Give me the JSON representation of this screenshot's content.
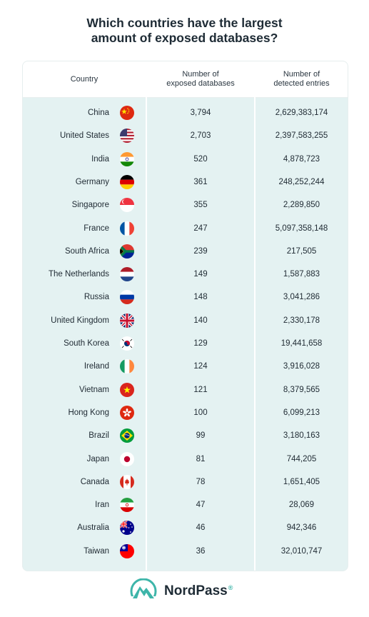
{
  "title_line1": "Which countries have the largest",
  "title_line2": "amount of exposed databases?",
  "headers": {
    "country": "Country",
    "db_line1": "Number of",
    "db_line2": "exposed databases",
    "entries_line1": "Number of",
    "entries_line2": "detected entries"
  },
  "chart_data": {
    "type": "table",
    "title": "Which countries have the largest amount of exposed databases?",
    "columns": [
      "Country",
      "Number of exposed databases",
      "Number of detected entries"
    ],
    "rows": [
      {
        "country": "China",
        "flag": "china-flag",
        "databases": "3,794",
        "entries": "2,629,383,174"
      },
      {
        "country": "United States",
        "flag": "usa-flag",
        "databases": "2,703",
        "entries": "2,397,583,255"
      },
      {
        "country": "India",
        "flag": "india-flag",
        "databases": "520",
        "entries": "4,878,723"
      },
      {
        "country": "Germany",
        "flag": "germany-flag",
        "databases": "361",
        "entries": "248,252,244"
      },
      {
        "country": "Singapore",
        "flag": "singapore-flag",
        "databases": "355",
        "entries": "2,289,850"
      },
      {
        "country": "France",
        "flag": "france-flag",
        "databases": "247",
        "entries": "5,097,358,148"
      },
      {
        "country": "South Africa",
        "flag": "south-africa-flag",
        "databases": "239",
        "entries": "217,505"
      },
      {
        "country": "The Netherlands",
        "flag": "netherlands-flag",
        "databases": "149",
        "entries": "1,587,883"
      },
      {
        "country": "Russia",
        "flag": "russia-flag",
        "databases": "148",
        "entries": "3,041,286"
      },
      {
        "country": "United Kingdom",
        "flag": "uk-flag",
        "databases": "140",
        "entries": "2,330,178"
      },
      {
        "country": "South Korea",
        "flag": "south-korea-flag",
        "databases": "129",
        "entries": "19,441,658"
      },
      {
        "country": "Ireland",
        "flag": "ireland-flag",
        "databases": "124",
        "entries": "3,916,028"
      },
      {
        "country": "Vietnam",
        "flag": "vietnam-flag",
        "databases": "121",
        "entries": "8,379,565"
      },
      {
        "country": "Hong Kong",
        "flag": "hong-kong-flag",
        "databases": "100",
        "entries": "6,099,213"
      },
      {
        "country": "Brazil",
        "flag": "brazil-flag",
        "databases": "99",
        "entries": "3,180,163"
      },
      {
        "country": "Japan",
        "flag": "japan-flag",
        "databases": "81",
        "entries": "744,205"
      },
      {
        "country": "Canada",
        "flag": "canada-flag",
        "databases": "78",
        "entries": "1,651,405"
      },
      {
        "country": "Iran",
        "flag": "iran-flag",
        "databases": "47",
        "entries": "28,069"
      },
      {
        "country": "Australia",
        "flag": "australia-flag",
        "databases": "46",
        "entries": "942,346"
      },
      {
        "country": "Taiwan",
        "flag": "taiwan-flag",
        "databases": "36",
        "entries": "32,010,747"
      }
    ]
  },
  "brand": {
    "name": "NordPass",
    "mark": "®",
    "accent": "#3db5a9"
  }
}
